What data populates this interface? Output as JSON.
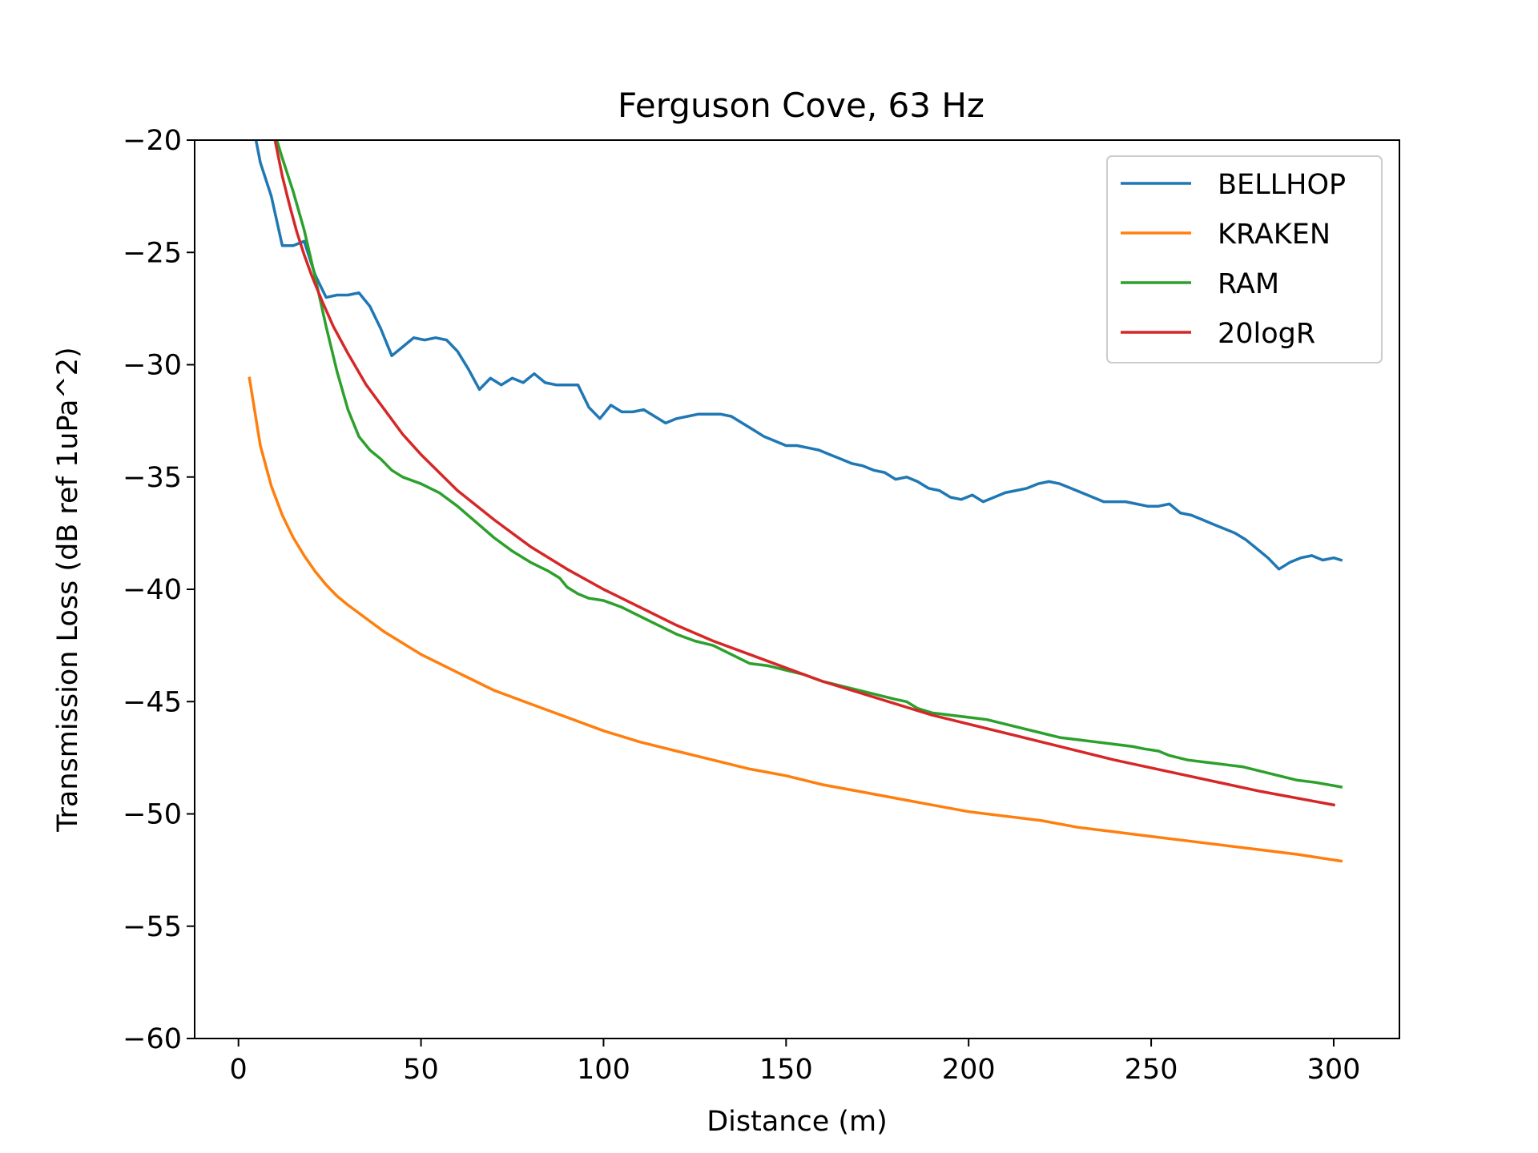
{
  "chart_data": {
    "type": "line",
    "title": "Ferguson Cove, 63 Hz",
    "xlabel": "Distance (m)",
    "ylabel": "Transmission Loss (dB ref 1uPa^2)",
    "xlim": [
      -12,
      318
    ],
    "ylim": [
      -60,
      -20
    ],
    "xticks": [
      0,
      50,
      100,
      150,
      200,
      250,
      300
    ],
    "yticks": [
      -20,
      -25,
      -30,
      -35,
      -40,
      -45,
      -50,
      -55,
      -60
    ],
    "xtick_labels": [
      "0",
      "50",
      "100",
      "150",
      "200",
      "250",
      "300"
    ],
    "ytick_labels": [
      "−20",
      "−25",
      "−30",
      "−35",
      "−40",
      "−45",
      "−50",
      "−55",
      "−60"
    ],
    "grid": false,
    "legend_position": "top-right",
    "series": [
      {
        "name": "BELLHOP",
        "color": "#1f77b4",
        "x": [
          3,
          6,
          9,
          12,
          15,
          18,
          21,
          24,
          27,
          30,
          33,
          36,
          39,
          42,
          45,
          48,
          51,
          54,
          57,
          60,
          63,
          66,
          69,
          72,
          75,
          78,
          81,
          84,
          87,
          90,
          93,
          96,
          99,
          102,
          105,
          108,
          111,
          114,
          117,
          120,
          123,
          126,
          129,
          132,
          135,
          138,
          141,
          144,
          147,
          150,
          153,
          156,
          159,
          162,
          165,
          168,
          171,
          174,
          177,
          180,
          183,
          186,
          189,
          192,
          195,
          198,
          201,
          204,
          207,
          210,
          213,
          216,
          219,
          222,
          225,
          228,
          231,
          234,
          237,
          240,
          243,
          246,
          249,
          252,
          255,
          258,
          261,
          264,
          267,
          270,
          273,
          276,
          279,
          282,
          285,
          288,
          291,
          294,
          297,
          300,
          302
        ],
        "y": [
          -18.5,
          -21.0,
          -22.5,
          -24.7,
          -24.7,
          -24.5,
          -26.0,
          -27.0,
          -26.9,
          -26.9,
          -26.8,
          -27.4,
          -28.4,
          -29.6,
          -29.2,
          -28.8,
          -28.9,
          -28.8,
          -28.9,
          -29.4,
          -30.2,
          -31.1,
          -30.6,
          -30.9,
          -30.6,
          -30.8,
          -30.4,
          -30.8,
          -30.9,
          -30.9,
          -30.9,
          -31.9,
          -32.4,
          -31.8,
          -32.1,
          -32.1,
          -32.0,
          -32.3,
          -32.6,
          -32.4,
          -32.3,
          -32.2,
          -32.2,
          -32.2,
          -32.3,
          -32.6,
          -32.9,
          -33.2,
          -33.4,
          -33.6,
          -33.6,
          -33.7,
          -33.8,
          -34.0,
          -34.2,
          -34.4,
          -34.5,
          -34.7,
          -34.8,
          -35.1,
          -35.0,
          -35.2,
          -35.5,
          -35.6,
          -35.9,
          -36.0,
          -35.8,
          -36.1,
          -35.9,
          -35.7,
          -35.6,
          -35.5,
          -35.3,
          -35.2,
          -35.3,
          -35.5,
          -35.7,
          -35.9,
          -36.1,
          -36.1,
          -36.1,
          -36.2,
          -36.3,
          -36.3,
          -36.2,
          -36.6,
          -36.7,
          -36.9,
          -37.1,
          -37.3,
          -37.5,
          -37.8,
          -38.2,
          -38.6,
          -39.1,
          -38.8,
          -38.6,
          -38.5,
          -38.7,
          -38.6,
          -38.7
        ]
      },
      {
        "name": "KRAKEN",
        "color": "#ff7f0e",
        "x": [
          3,
          6,
          9,
          12,
          15,
          18,
          21,
          24,
          27,
          30,
          35,
          40,
          45,
          50,
          55,
          60,
          65,
          70,
          75,
          80,
          85,
          90,
          95,
          100,
          110,
          120,
          130,
          140,
          150,
          160,
          170,
          180,
          190,
          200,
          210,
          220,
          230,
          240,
          250,
          260,
          270,
          280,
          290,
          302
        ],
        "y": [
          -30.6,
          -33.6,
          -35.4,
          -36.7,
          -37.7,
          -38.5,
          -39.2,
          -39.8,
          -40.3,
          -40.7,
          -41.3,
          -41.9,
          -42.4,
          -42.9,
          -43.3,
          -43.7,
          -44.1,
          -44.5,
          -44.8,
          -45.1,
          -45.4,
          -45.7,
          -46.0,
          -46.3,
          -46.8,
          -47.2,
          -47.6,
          -48.0,
          -48.3,
          -48.7,
          -49.0,
          -49.3,
          -49.6,
          -49.9,
          -50.1,
          -50.3,
          -50.6,
          -50.8,
          -51.0,
          -51.2,
          -51.4,
          -51.6,
          -51.8,
          -52.1
        ]
      },
      {
        "name": "RAM",
        "color": "#2ca02c",
        "x": [
          9,
          12,
          15,
          18,
          21,
          24,
          27,
          30,
          33,
          36,
          39,
          42,
          45,
          50,
          55,
          60,
          65,
          70,
          75,
          80,
          85,
          88,
          90,
          93,
          96,
          100,
          105,
          110,
          115,
          120,
          125,
          130,
          135,
          140,
          145,
          150,
          155,
          160,
          165,
          170,
          175,
          180,
          183,
          186,
          190,
          195,
          200,
          205,
          210,
          215,
          220,
          225,
          230,
          235,
          240,
          245,
          248,
          252,
          255,
          260,
          265,
          270,
          275,
          280,
          285,
          290,
          295,
          302
        ],
        "y": [
          -19.2,
          -20.8,
          -22.3,
          -24.0,
          -26.1,
          -28.3,
          -30.3,
          -32.0,
          -33.2,
          -33.8,
          -34.2,
          -34.7,
          -35.0,
          -35.3,
          -35.7,
          -36.3,
          -37.0,
          -37.7,
          -38.3,
          -38.8,
          -39.2,
          -39.5,
          -39.9,
          -40.2,
          -40.4,
          -40.5,
          -40.8,
          -41.2,
          -41.6,
          -42.0,
          -42.3,
          -42.5,
          -42.9,
          -43.3,
          -43.4,
          -43.6,
          -43.8,
          -44.1,
          -44.3,
          -44.5,
          -44.7,
          -44.9,
          -45.0,
          -45.3,
          -45.5,
          -45.6,
          -45.7,
          -45.8,
          -46.0,
          -46.2,
          -46.4,
          -46.6,
          -46.7,
          -46.8,
          -46.9,
          -47.0,
          -47.1,
          -47.2,
          -47.4,
          -47.6,
          -47.7,
          -47.8,
          -47.9,
          -48.1,
          -48.3,
          -48.5,
          -48.6,
          -48.8
        ]
      },
      {
        "name": "20logR",
        "color": "#d62728",
        "x": [
          10,
          12,
          14,
          16,
          18,
          20,
          23,
          26,
          30,
          35,
          40,
          45,
          50,
          60,
          70,
          80,
          90,
          100,
          110,
          120,
          130,
          140,
          150,
          160,
          170,
          180,
          190,
          200,
          220,
          240,
          260,
          280,
          300
        ],
        "y": [
          -20.0,
          -21.6,
          -22.9,
          -24.1,
          -25.1,
          -26.0,
          -27.2,
          -28.3,
          -29.5,
          -30.9,
          -32.0,
          -33.1,
          -34.0,
          -35.6,
          -36.9,
          -38.1,
          -39.1,
          -40.0,
          -40.8,
          -41.6,
          -42.3,
          -42.9,
          -43.5,
          -44.1,
          -44.6,
          -45.1,
          -45.6,
          -46.0,
          -46.8,
          -47.6,
          -48.3,
          -49.0,
          -49.6
        ]
      }
    ]
  }
}
